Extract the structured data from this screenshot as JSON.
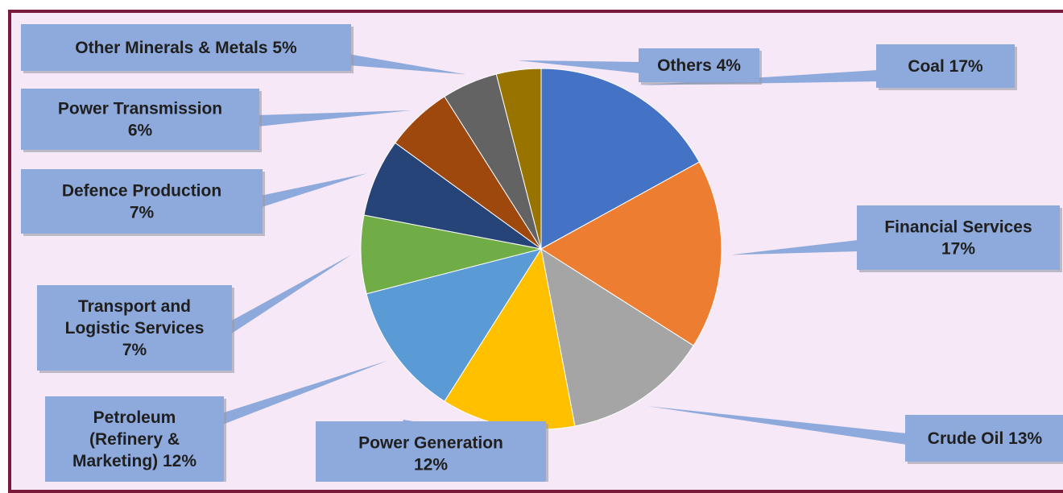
{
  "chart_data": {
    "type": "pie",
    "start_angle_deg": 0,
    "direction": "clockwise",
    "slices": [
      {
        "label": "Coal",
        "display": "Coal 17%",
        "value": 17,
        "color": "#4472C4"
      },
      {
        "label": "Financial Services",
        "display": "Financial Services\n17%",
        "value": 17,
        "color": "#ED7D31"
      },
      {
        "label": "Crude Oil",
        "display": "Crude Oil  13%",
        "value": 13,
        "color": "#A5A5A5"
      },
      {
        "label": "Power Generation",
        "display": "Power Generation\n12%",
        "value": 12,
        "color": "#FFC000"
      },
      {
        "label": "Petroleum (Refinery & Marketing)",
        "display": "Petroleum\n(Refinery &\nMarketing) 12%",
        "value": 12,
        "color": "#5B9BD5"
      },
      {
        "label": "Transport and Logistic Services",
        "display": "Transport and\nLogistic Services\n7%",
        "value": 7,
        "color": "#70AD47"
      },
      {
        "label": "Defence Production",
        "display": "Defence Production\n7%",
        "value": 7,
        "color": "#264478"
      },
      {
        "label": "Power Transmission",
        "display": "Power Transmission\n6%",
        "value": 6,
        "color": "#9E480E"
      },
      {
        "label": "Other Minerals & Metals",
        "display": "Other Minerals & Metals 5%",
        "value": 5,
        "color": "#636363"
      },
      {
        "label": "Others",
        "display": "Others 4%",
        "value": 4,
        "color": "#997300"
      }
    ],
    "legend": "none",
    "label_style": {
      "box_color": "#8EA9DB",
      "leader_color": "#8EA9DB"
    }
  }
}
